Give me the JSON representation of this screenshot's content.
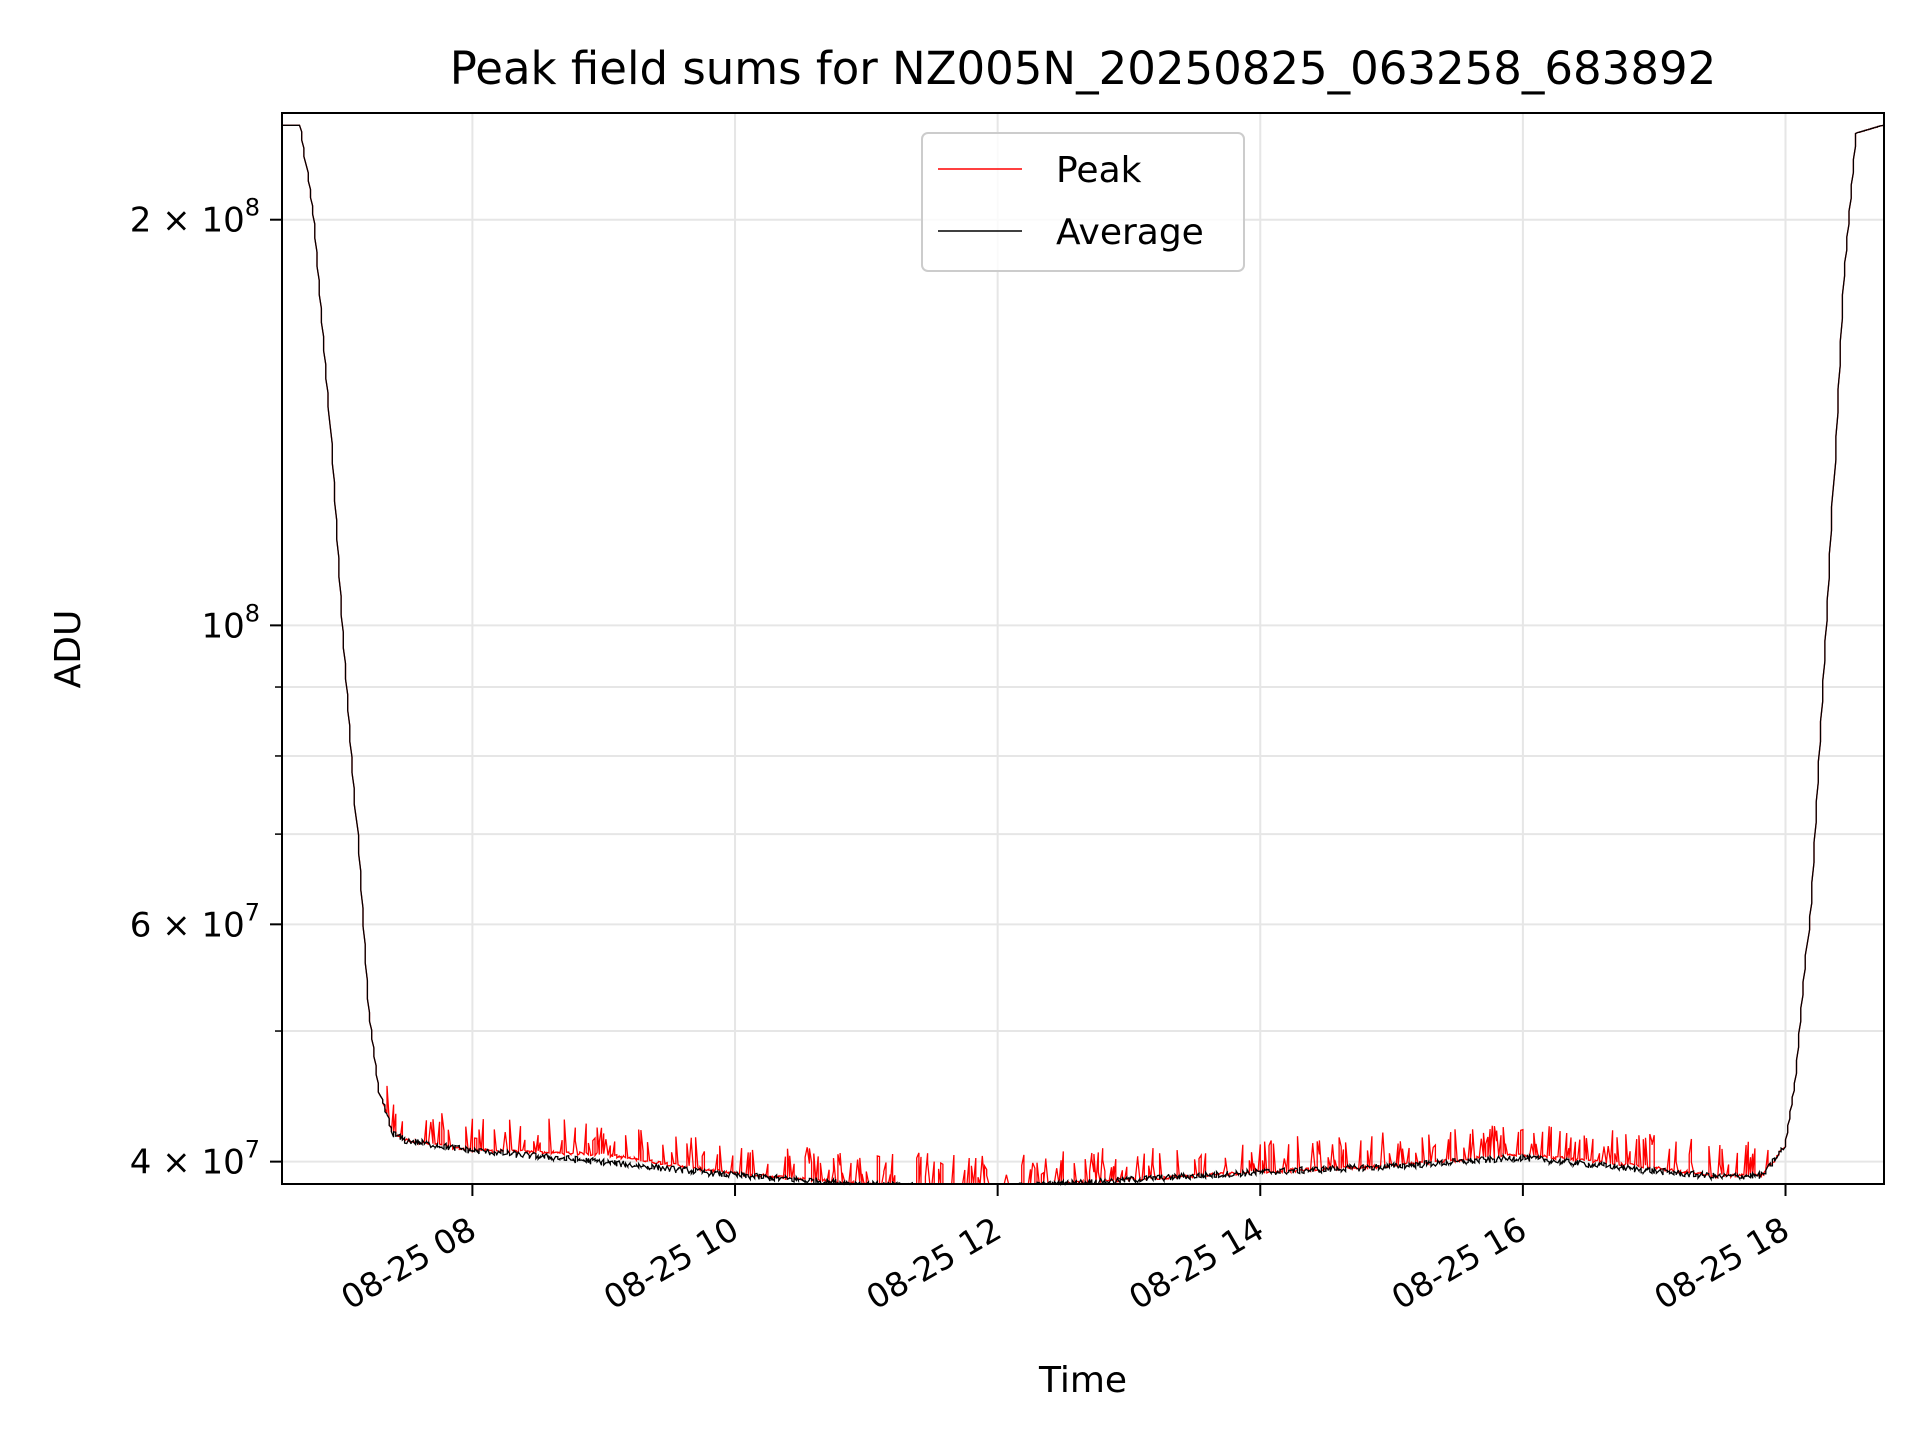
{
  "chart_data": {
    "type": "line",
    "title": "Peak field sums for NZ005N_20250825_063258_683892",
    "xlabel": "Time",
    "ylabel": "ADU",
    "yscale": "log",
    "grid": true,
    "legend_placement": "upper center",
    "xlim": [
      "2025-08-25 06:33",
      "2025-08-25 18:45"
    ],
    "ylim": [
      38500000,
      240000000
    ],
    "x_ticks": [
      {
        "value": "2025-08-25 08:00",
        "label": "08-25 08"
      },
      {
        "value": "2025-08-25 10:00",
        "label": "08-25 10"
      },
      {
        "value": "2025-08-25 12:00",
        "label": "08-25 12"
      },
      {
        "value": "2025-08-25 14:00",
        "label": "08-25 14"
      },
      {
        "value": "2025-08-25 16:00",
        "label": "08-25 16"
      },
      {
        "value": "2025-08-25 18:00",
        "label": "08-25 18"
      }
    ],
    "y_ticks": [
      {
        "value": 40000000,
        "label": "4 × 10⁷",
        "mantissa": "4",
        "exp": "7"
      },
      {
        "value": 60000000,
        "label": "6 × 10⁷",
        "mantissa": "6",
        "exp": "7"
      },
      {
        "value": 100000000,
        "label": "10⁸",
        "mantissa": "",
        "exp": "8"
      },
      {
        "value": 200000000,
        "label": "2 × 10⁸",
        "mantissa": "2",
        "exp": "8"
      }
    ],
    "y_minor_ticks": [
      50000000,
      70000000,
      80000000,
      90000000
    ],
    "series": [
      {
        "name": "Peak",
        "color": "#ff0000",
        "x": [
          "2025-08-25 06:33",
          "2025-08-25 06:42",
          "2025-08-25 06:48",
          "2025-08-25 06:55",
          "2025-08-25 07:01",
          "2025-08-25 07:08",
          "2025-08-25 07:13",
          "2025-08-25 07:18",
          "2025-08-25 07:24",
          "2025-08-25 07:30",
          "2025-08-25 08:00",
          "2025-08-25 09:00",
          "2025-08-25 10:00",
          "2025-08-25 11:00",
          "2025-08-25 11:50",
          "2025-08-25 13:00",
          "2025-08-25 14:00",
          "2025-08-25 15:00",
          "2025-08-25 16:00",
          "2025-08-25 17:00",
          "2025-08-25 17:30",
          "2025-08-25 17:50",
          "2025-08-25 18:00",
          "2025-08-25 18:05",
          "2025-08-25 18:12",
          "2025-08-25 18:20",
          "2025-08-25 18:27",
          "2025-08-25 18:33",
          "2025-08-25 18:45"
        ],
        "values": [
          235000000,
          235000000,
          200000000,
          145000000,
          100000000,
          70000000,
          52000000,
          45000000,
          42000000,
          41500000,
          40800000,
          40500000,
          39200000,
          38500000,
          38200000,
          38800000,
          39300000,
          39700000,
          40500000,
          39600000,
          39000000,
          39100000,
          41000000,
          46000000,
          62000000,
          105000000,
          180000000,
          232000000,
          235000000
        ]
      },
      {
        "name": "Average",
        "color": "#000000",
        "x": [
          "2025-08-25 06:33",
          "2025-08-25 06:42",
          "2025-08-25 06:48",
          "2025-08-25 06:55",
          "2025-08-25 07:01",
          "2025-08-25 07:08",
          "2025-08-25 07:13",
          "2025-08-25 07:18",
          "2025-08-25 07:24",
          "2025-08-25 07:30",
          "2025-08-25 08:00",
          "2025-08-25 09:00",
          "2025-08-25 10:00",
          "2025-08-25 11:00",
          "2025-08-25 11:50",
          "2025-08-25 13:00",
          "2025-08-25 14:00",
          "2025-08-25 15:00",
          "2025-08-25 16:00",
          "2025-08-25 17:00",
          "2025-08-25 17:30",
          "2025-08-25 17:50",
          "2025-08-25 18:00",
          "2025-08-25 18:05",
          "2025-08-25 18:12",
          "2025-08-25 18:20",
          "2025-08-25 18:27",
          "2025-08-25 18:33",
          "2025-08-25 18:45"
        ],
        "values": [
          235000000,
          235000000,
          200000000,
          145000000,
          100000000,
          70000000,
          52000000,
          45000000,
          42000000,
          41500000,
          40800000,
          40000000,
          39100000,
          38500000,
          38200000,
          38800000,
          39300000,
          39700000,
          40300000,
          39400000,
          39000000,
          39100000,
          41000000,
          46000000,
          62000000,
          105000000,
          180000000,
          232000000,
          235000000
        ]
      }
    ]
  }
}
